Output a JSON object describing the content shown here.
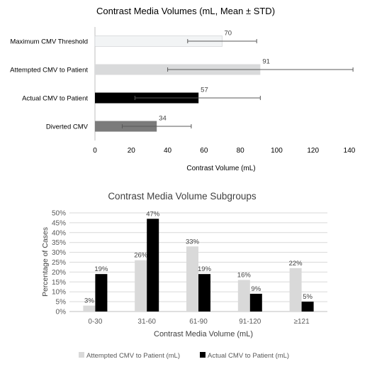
{
  "chart_data": [
    {
      "type": "bar",
      "orientation": "horizontal",
      "title": "Contrast Media Volumes (mL, Mean ± STD)",
      "xlabel": "Contrast Volume (mL)",
      "ylabel": "",
      "xlim": [
        0,
        140
      ],
      "xticks": [
        0,
        20,
        40,
        60,
        80,
        100,
        120,
        140
      ],
      "grid": false,
      "categories": [
        "Maximum CMV Threshold",
        "Attempted CMV to Patient",
        "Actual CMV to Patient",
        "Diverted CMV"
      ],
      "values": [
        70,
        91,
        57,
        34
      ],
      "error_low": [
        51,
        40,
        22,
        15
      ],
      "error_high": [
        89,
        142,
        91,
        53
      ],
      "data_labels": [
        "70",
        "91",
        "57",
        "34"
      ],
      "colors": {
        "Maximum CMV Threshold": "#f2f4f5",
        "Attempted CMV to Patient": "#d9dadb",
        "Actual CMV to Patient": "#000000",
        "Diverted CMV": "#7b7b7b"
      }
    },
    {
      "type": "bar",
      "title": "Contrast Media Volume Subgroups",
      "xlabel": "Contrast Media Volume (mL)",
      "ylabel": "Percentage of Cases",
      "ylim": [
        0,
        0.5
      ],
      "yticks": [
        "0%",
        "5%",
        "10%",
        "15%",
        "20%",
        "25%",
        "30%",
        "35%",
        "40%",
        "45%",
        "50%"
      ],
      "grid": true,
      "legend_position": "bottom",
      "categories": [
        "0-30",
        "31-60",
        "61-90",
        "91-120",
        "≥121"
      ],
      "series": [
        {
          "name": "Attempted CMV to Patient (mL)",
          "color": "#d9d9d9",
          "values": [
            0.03,
            0.26,
            0.33,
            0.16,
            0.22
          ],
          "labels": [
            "3%",
            "26%",
            "33%",
            "16%",
            "22%"
          ]
        },
        {
          "name": "Actual CMV to Patient (mL)",
          "color": "#000000",
          "values": [
            0.19,
            0.47,
            0.19,
            0.09,
            0.05
          ],
          "labels": [
            "19%",
            "47%",
            "19%",
            "9%",
            "5%"
          ]
        }
      ]
    }
  ]
}
